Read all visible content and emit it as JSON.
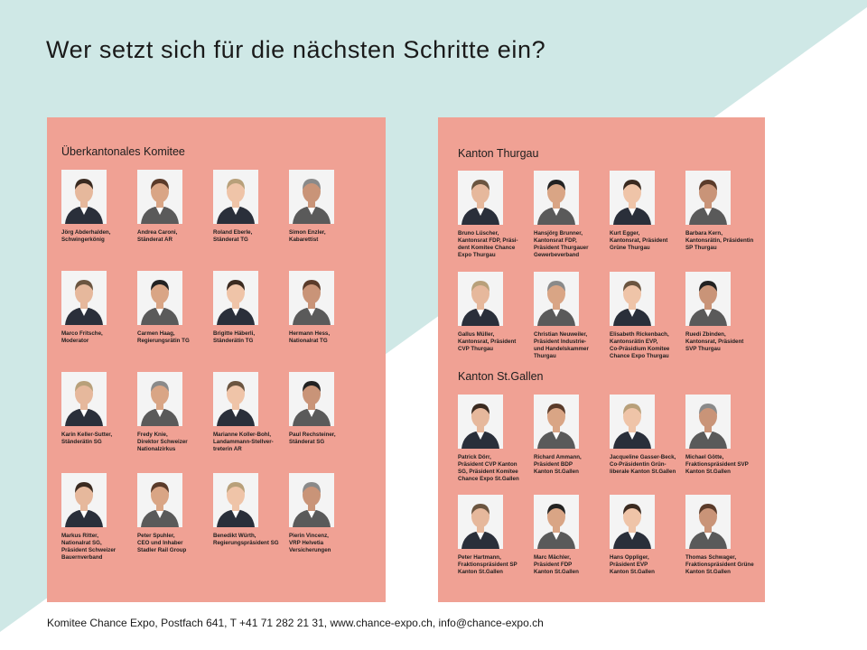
{
  "title": "Wer setzt sich für die nächsten Schritte ein?",
  "footer": "Komitee Chance Expo, Postfach 641, T +41 71 282 21 31, www.chance-expo.ch, info@chance-expo.ch",
  "colors": {
    "background_shape": "#cfe8e6",
    "panel": "#f0a194"
  },
  "left_panel": {
    "heading": "Überkantonales Komitee",
    "people": [
      {
        "lines": [
          "Jörg Abderhalden,",
          "Schwingerkönig"
        ]
      },
      {
        "lines": [
          "Andrea Caroni,",
          "Ständerat AR"
        ]
      },
      {
        "lines": [
          "Roland Eberle,",
          "Ständerat TG"
        ]
      },
      {
        "lines": [
          "Simon Enzler,",
          "Kabarettist"
        ]
      },
      {
        "lines": [
          "Marco Fritsche,",
          "Moderator"
        ]
      },
      {
        "lines": [
          "Carmen Haag,",
          "Regierungsrätin TG"
        ]
      },
      {
        "lines": [
          "Brigitte Häberli,",
          "Ständerätin TG"
        ]
      },
      {
        "lines": [
          "Hermann Hess,",
          "Nationalrat TG"
        ]
      },
      {
        "lines": [
          "Karin Keller-Sutter,",
          "Ständerätin SG"
        ]
      },
      {
        "lines": [
          "Fredy Knie,",
          "Direktor Schweizer",
          "Nationalzirkus"
        ]
      },
      {
        "lines": [
          "Marianne Koller-Bohl,",
          "Landammann-Stellver-",
          "treterin AR"
        ]
      },
      {
        "lines": [
          "Paul Rechsteiner,",
          "Ständerat SG"
        ]
      },
      {
        "lines": [
          "Markus Ritter,",
          "Nationalrat SG,",
          "Präsident Schweizer",
          "Bauernverband"
        ]
      },
      {
        "lines": [
          "Peter Spuhler,",
          "CEO und Inhaber",
          "Stadler Rail Group"
        ]
      },
      {
        "lines": [
          "Benedikt Würth,",
          "Regierungspräsident SG"
        ]
      },
      {
        "lines": [
          "Pierin Vincenz,",
          "VRP Helvetia",
          "Versicherungen"
        ]
      }
    ]
  },
  "right_panel": {
    "heading_thurgau": "Kanton Thurgau",
    "thurgau": [
      {
        "lines": [
          "Bruno Lüscher,",
          "Kantonsrat FDP, Präsi-",
          "dent Komitee Chance",
          "Expo Thurgau"
        ]
      },
      {
        "lines": [
          "Hansjörg Brunner,",
          "Kantonsrat FDP,",
          "Präsident Thurgauer",
          "Gewerbeverband"
        ]
      },
      {
        "lines": [
          "Kurt Egger,",
          "Kantonsrat, Präsident",
          "Grüne Thurgau"
        ]
      },
      {
        "lines": [
          "Barbara Kern,",
          "Kantonsrätin, Präsidentin",
          "SP Thurgau"
        ]
      },
      {
        "lines": [
          "Gallus Müller,",
          "Kantonsrat, Präsident",
          "CVP Thurgau"
        ]
      },
      {
        "lines": [
          "Christian Neuweiler,",
          "Präsident Industrie-",
          "und Handelskammer",
          "Thurgau"
        ]
      },
      {
        "lines": [
          "Elisabeth Rickenbach,",
          "Kantonsrätin EVP,",
          "Co-Präsidium Komitee",
          "Chance Expo Thurgau"
        ]
      },
      {
        "lines": [
          "Ruedi Zbinden,",
          "Kantonsrat, Präsident",
          "SVP Thurgau"
        ]
      }
    ],
    "heading_stgallen": "Kanton St.Gallen",
    "stgallen": [
      {
        "lines": [
          "Patrick Dörr,",
          "Präsident CVP Kanton",
          "SG, Präsident Komitee",
          "Chance Expo St.Gallen"
        ]
      },
      {
        "lines": [
          "Richard Ammann,",
          "Präsident BDP",
          "Kanton St.Gallen"
        ]
      },
      {
        "lines": [
          "Jacqueline Gasser-Beck,",
          "Co-Präsidentin Grün-",
          "liberale Kanton St.Gallen"
        ]
      },
      {
        "lines": [
          "Michael Götte,",
          "Fraktionspräsident SVP",
          "Kanton St.Gallen"
        ]
      },
      {
        "lines": [
          "Peter Hartmann,",
          "Fraktionspräsident SP",
          "Kanton St.Gallen"
        ]
      },
      {
        "lines": [
          "Marc Mächler,",
          "Präsident FDP",
          "Kanton St.Gallen"
        ]
      },
      {
        "lines": [
          "Hans Oppliger,",
          "Präsident EVP",
          "Kanton St.Gallen"
        ]
      },
      {
        "lines": [
          "Thomas Schwager,",
          "Fraktionspräsident Grüne",
          "Kanton St.Gallen"
        ]
      }
    ]
  }
}
